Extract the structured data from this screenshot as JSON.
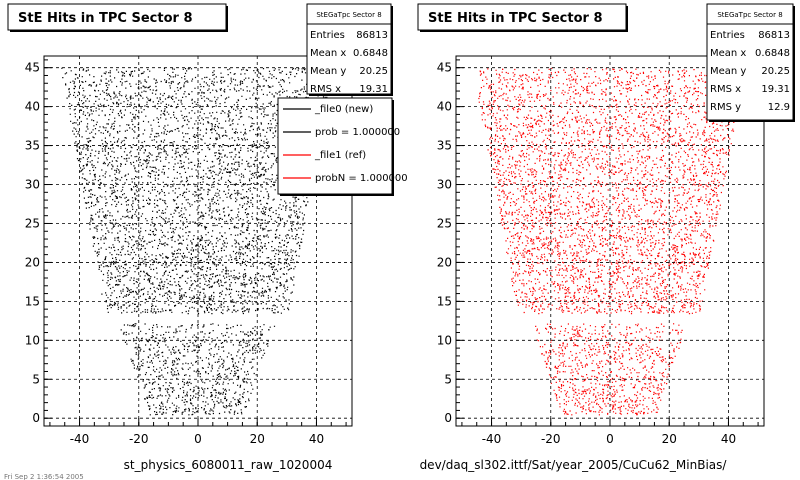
{
  "canvas": {
    "background": "#ffffff",
    "frame_color": "#000000",
    "grid_color": "#000000"
  },
  "panels": [
    {
      "title": "StE Hits in TPC Sector 8",
      "footer": "st_physics_6080011_raw_1020004",
      "stats": {
        "title": "StEGaTpc Sector 8",
        "rows": [
          {
            "label": "Entries",
            "value": "86813"
          },
          {
            "label": "Mean x",
            "value": "0.6848"
          },
          {
            "label": "Mean y",
            "value": "20.25"
          },
          {
            "label": "RMS x",
            "value": "19.31"
          }
        ]
      },
      "legend": {
        "entries": [
          {
            "label": "_file0 (new)",
            "color": "#000000"
          },
          {
            "label": "prob = 1.000000",
            "color": "#000000"
          },
          {
            "label": "_file1 (ref)",
            "color": "#ff0000"
          },
          {
            "label": "probN = 1.000000",
            "color": "#ff0000"
          }
        ]
      }
    },
    {
      "title": "StE Hits in TPC Sector 8",
      "footer": "dev/daq_sl302.ittf/Sat/year_2005/CuCu62_MinBias/",
      "stats": {
        "title": "StEGaTpc Sector 8",
        "rows": [
          {
            "label": "Entries",
            "value": "86813"
          },
          {
            "label": "Mean x",
            "value": "0.6848"
          },
          {
            "label": "Mean y",
            "value": "20.25"
          },
          {
            "label": "RMS x",
            "value": "19.31"
          },
          {
            "label": "RMS y",
            "value": "12.9"
          }
        ]
      }
    }
  ],
  "corner_label": "Fri Sep 2 1:36:54 2005",
  "chart_data": [
    {
      "type": "scatter",
      "title": "StE Hits in TPC Sector 8",
      "xlabel": "",
      "ylabel": "",
      "xlim": [
        -52,
        52
      ],
      "ylim": [
        -1,
        46.5
      ],
      "xticks": [
        -40,
        -20,
        0,
        20,
        40
      ],
      "yticks": [
        0,
        5,
        10,
        15,
        20,
        25,
        30,
        35,
        40,
        45
      ],
      "grid": true,
      "color": "#000000",
      "density": 2600,
      "region": {
        "outer_top": {
          "y": 45,
          "x_half": 46
        },
        "outer_bottom": {
          "y": 13.5,
          "x_half": 31
        },
        "inner_top": {
          "y": 12.2,
          "x_half": 26.5
        },
        "inner_bottom": {
          "y": 0.5,
          "x_half": 16
        },
        "x_center": -0.5
      },
      "legend_position": "top-right",
      "stats_position": "top-right"
    },
    {
      "type": "scatter",
      "title": "StE Hits in TPC Sector 8",
      "xlabel": "",
      "ylabel": "",
      "xlim": [
        -52,
        52
      ],
      "ylim": [
        -1,
        46.5
      ],
      "xticks": [
        -40,
        -20,
        0,
        20,
        40
      ],
      "yticks": [
        0,
        5,
        10,
        15,
        20,
        25,
        30,
        35,
        40,
        45
      ],
      "grid": true,
      "color": "#ff0000",
      "density": 2600,
      "region": {
        "outer_top": {
          "y": 45,
          "x_half": 46
        },
        "outer_bottom": {
          "y": 13.5,
          "x_half": 31
        },
        "inner_top": {
          "y": 12.2,
          "x_half": 26.5
        },
        "inner_bottom": {
          "y": 0.5,
          "x_half": 16
        },
        "x_center": -0.5
      },
      "stats_position": "top-right"
    }
  ]
}
